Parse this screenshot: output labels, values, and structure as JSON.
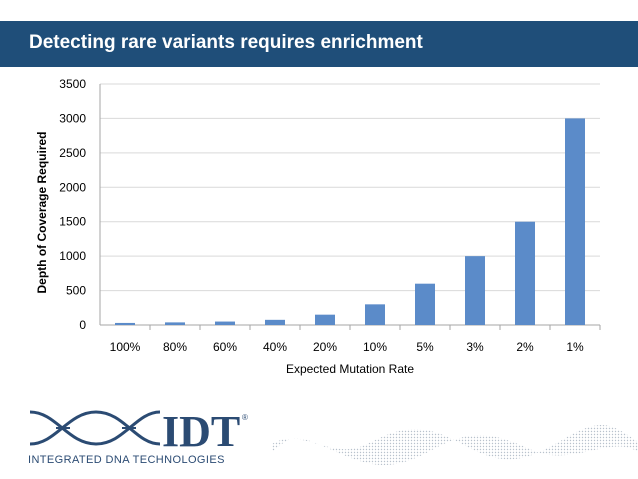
{
  "slide": {
    "title": "Detecting rare variants requires enrichment"
  },
  "logo": {
    "wordmark": "IDT",
    "registered": "®",
    "subtitle": "INTEGRATED DNA TECHNOLOGIES"
  },
  "colors": {
    "title_bar": "#1f4e79",
    "bar": "#5b8bc9",
    "grid": "#d9d9d9",
    "logo": "#2b4b73"
  },
  "chart_data": {
    "type": "bar",
    "title": "",
    "xlabel": "Expected Mutation Rate",
    "ylabel": "Depth of Coverage Required",
    "categories": [
      "100%",
      "80%",
      "60%",
      "40%",
      "20%",
      "10%",
      "5%",
      "3%",
      "2%",
      "1%"
    ],
    "values": [
      30,
      38,
      50,
      75,
      150,
      300,
      600,
      1000,
      1500,
      3000
    ],
    "ylim": [
      0,
      3500
    ],
    "yticks": [
      0,
      500,
      1000,
      1500,
      2000,
      2500,
      3000,
      3500
    ],
    "grid": true,
    "legend": "none"
  }
}
